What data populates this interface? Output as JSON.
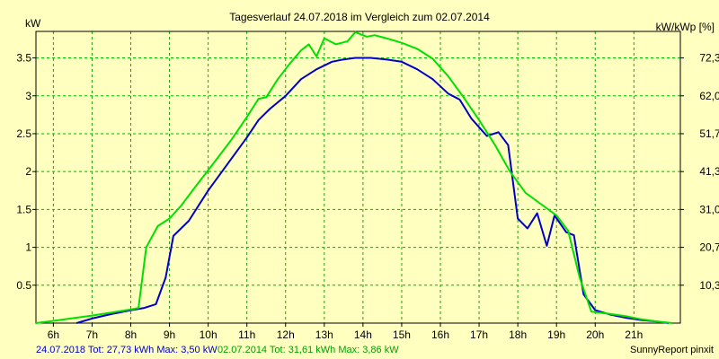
{
  "chart_data": {
    "type": "line",
    "title": "Tagesverlauf 24.07.2018 im Vergleich zum 02.07.2014",
    "ylabel_left": "kW",
    "ylabel_right": "kW/kWp [%]",
    "xlim": [
      5.55,
      22.2
    ],
    "ylim": [
      0,
      3.85
    ],
    "grid": true,
    "x_ticks": [
      6,
      7,
      8,
      9,
      10,
      11,
      12,
      13,
      14,
      15,
      16,
      17,
      18,
      19,
      20,
      21
    ],
    "x_tick_labels": [
      "6h",
      "7h",
      "8h",
      "9h",
      "10h",
      "11h",
      "12h",
      "13h",
      "14h",
      "15h",
      "16h",
      "17h",
      "18h",
      "19h",
      "20h",
      "21h"
    ],
    "y_ticks": [
      0.5,
      1,
      1.5,
      2,
      2.5,
      3,
      3.5
    ],
    "y_tick_labels": [
      "0.5",
      "1",
      "1.5",
      "2",
      "2.5",
      "3",
      "3.5"
    ],
    "y2_ticks": [
      0.5,
      1,
      1.5,
      2,
      2.5,
      3,
      3.5
    ],
    "y2_tick_labels": [
      "10,3",
      "20,7",
      "31,0",
      "41,3",
      "51,7",
      "62,0",
      "72,3"
    ],
    "series": [
      {
        "name": "24.07.2018",
        "color": "#0000c8",
        "points": [
          [
            6.6,
            0.0
          ],
          [
            7.0,
            0.06
          ],
          [
            7.5,
            0.12
          ],
          [
            8.0,
            0.17
          ],
          [
            8.35,
            0.2
          ],
          [
            8.65,
            0.25
          ],
          [
            8.9,
            0.6
          ],
          [
            9.1,
            1.15
          ],
          [
            9.5,
            1.35
          ],
          [
            10.0,
            1.75
          ],
          [
            10.5,
            2.1
          ],
          [
            11.0,
            2.45
          ],
          [
            11.3,
            2.68
          ],
          [
            11.6,
            2.83
          ],
          [
            12.0,
            3.0
          ],
          [
            12.4,
            3.22
          ],
          [
            12.8,
            3.35
          ],
          [
            13.2,
            3.45
          ],
          [
            13.5,
            3.48
          ],
          [
            13.8,
            3.5
          ],
          [
            14.2,
            3.5
          ],
          [
            14.6,
            3.48
          ],
          [
            15.0,
            3.45
          ],
          [
            15.4,
            3.35
          ],
          [
            15.8,
            3.22
          ],
          [
            16.2,
            3.03
          ],
          [
            16.5,
            2.95
          ],
          [
            16.8,
            2.7
          ],
          [
            17.2,
            2.47
          ],
          [
            17.5,
            2.52
          ],
          [
            17.75,
            2.35
          ],
          [
            18.0,
            1.38
          ],
          [
            18.25,
            1.25
          ],
          [
            18.5,
            1.45
          ],
          [
            18.75,
            1.02
          ],
          [
            18.95,
            1.42
          ],
          [
            19.25,
            1.2
          ],
          [
            19.45,
            1.16
          ],
          [
            19.7,
            0.38
          ],
          [
            20.0,
            0.17
          ],
          [
            20.4,
            0.11
          ],
          [
            20.8,
            0.07
          ],
          [
            21.2,
            0.04
          ],
          [
            21.6,
            0.02
          ],
          [
            21.9,
            0.0
          ]
        ]
      },
      {
        "name": "02.07.2014",
        "color": "#00e000",
        "points": [
          [
            5.55,
            0.0
          ],
          [
            6.0,
            0.03
          ],
          [
            7.0,
            0.1
          ],
          [
            7.5,
            0.14
          ],
          [
            8.0,
            0.18
          ],
          [
            8.2,
            0.2
          ],
          [
            8.4,
            1.0
          ],
          [
            8.7,
            1.28
          ],
          [
            9.0,
            1.38
          ],
          [
            9.3,
            1.55
          ],
          [
            9.7,
            1.82
          ],
          [
            10.2,
            2.15
          ],
          [
            10.6,
            2.42
          ],
          [
            11.0,
            2.72
          ],
          [
            11.3,
            2.96
          ],
          [
            11.5,
            2.98
          ],
          [
            11.8,
            3.22
          ],
          [
            12.1,
            3.42
          ],
          [
            12.4,
            3.6
          ],
          [
            12.6,
            3.68
          ],
          [
            12.8,
            3.52
          ],
          [
            13.0,
            3.76
          ],
          [
            13.3,
            3.68
          ],
          [
            13.6,
            3.72
          ],
          [
            13.8,
            3.84
          ],
          [
            14.1,
            3.78
          ],
          [
            14.3,
            3.8
          ],
          [
            14.6,
            3.76
          ],
          [
            15.0,
            3.7
          ],
          [
            15.4,
            3.62
          ],
          [
            15.8,
            3.49
          ],
          [
            16.2,
            3.26
          ],
          [
            16.6,
            2.98
          ],
          [
            17.0,
            2.68
          ],
          [
            17.4,
            2.36
          ],
          [
            17.8,
            2.0
          ],
          [
            18.2,
            1.72
          ],
          [
            18.6,
            1.57
          ],
          [
            19.0,
            1.42
          ],
          [
            19.3,
            1.22
          ],
          [
            19.6,
            0.6
          ],
          [
            19.9,
            0.15
          ],
          [
            20.4,
            0.12
          ],
          [
            20.8,
            0.09
          ],
          [
            21.2,
            0.05
          ],
          [
            21.6,
            0.02
          ],
          [
            22.0,
            0.0
          ]
        ]
      }
    ]
  },
  "footer": {
    "series1_summary": "24.07.2018 Tot: 27,73 kWh Max: 3,50 kW",
    "series2_summary": "02.07.2014 Tot: 31,61 kWh Max: 3,86 kW",
    "credit": "SunnyReport pinxit"
  }
}
